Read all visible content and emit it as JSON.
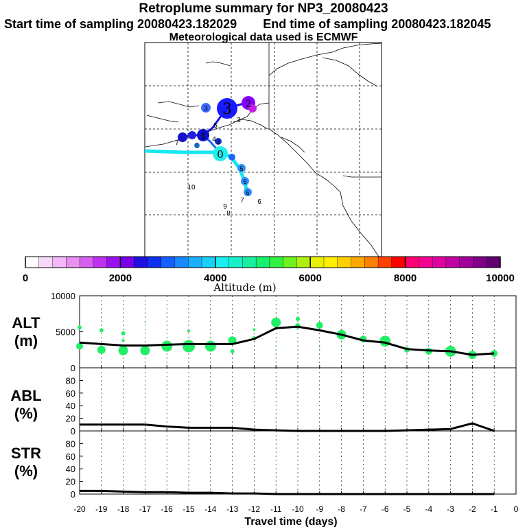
{
  "header": {
    "title": "Retroplume summary for NP3_20080423",
    "start_label": "Start time of sampling 20080423.182029",
    "end_label": "End time of sampling 20080423.182045",
    "met_label": "Meteorological data used is ECMWF"
  },
  "colors": {
    "path_blue": "#1414e6",
    "path_cyan": "#18e6f0",
    "plume_green": "#22ee66",
    "line_black": "#000000"
  },
  "map": {
    "markers": [
      {
        "label": "3",
        "size": "large",
        "color": "#1a1aff"
      },
      {
        "label": "2",
        "size": "medium",
        "color": "#8a00ff"
      },
      {
        "label": "3",
        "size": "small",
        "color": "#3a6aff"
      },
      {
        "label": "1",
        "size": "medium",
        "color": "#1010c8"
      },
      {
        "label": "4",
        "size": "small",
        "color": "#1430d8"
      },
      {
        "label": "0",
        "size": "medium",
        "color": "#22eeee"
      },
      {
        "label": "5",
        "size": "small",
        "color": "#2a90ff"
      },
      {
        "label": "5",
        "size": "small",
        "color": "#2a90ff"
      },
      {
        "label": "6",
        "size": "small",
        "color": "#2a90ff"
      }
    ],
    "text_labels": [
      "5",
      "3",
      "7",
      "6",
      "4",
      "10",
      "7",
      "6",
      "9",
      "8"
    ]
  },
  "colorbar": {
    "tick_labels": [
      "0",
      "2000",
      "4000",
      "6000",
      "8000",
      "10000"
    ],
    "axis_label": "Altitude  (m)",
    "colors": [
      "#ffffff",
      "#f8d8f8",
      "#f0b8f4",
      "#e890f0",
      "#d860f0",
      "#c030f0",
      "#9a10f0",
      "#7800e8",
      "#2010e0",
      "#1030f0",
      "#1660ff",
      "#1a88ff",
      "#1ab0ff",
      "#18d0f8",
      "#18f0f0",
      "#18f0c8",
      "#18f0a0",
      "#18f070",
      "#30f040",
      "#70f020",
      "#b0f010",
      "#e8f000",
      "#fff000",
      "#ffd000",
      "#ffa800",
      "#ff8000",
      "#ff4000",
      "#ff0000",
      "#ff0070",
      "#f00090",
      "#e000a0",
      "#c000a0",
      "#a00098",
      "#800088",
      "#600070"
    ]
  },
  "chart_data": [
    {
      "type": "line",
      "panel_label": "ALT\n(m)",
      "label_line1": "ALT",
      "label_line2": "(m)",
      "x": [
        -20,
        -19,
        -18,
        -17,
        -16,
        -15,
        -14,
        -13,
        -12,
        -11,
        -10,
        -9,
        -8,
        -7,
        -6,
        -5,
        -4,
        -3,
        -2,
        -1
      ],
      "values": [
        3500,
        3300,
        3100,
        3100,
        3200,
        3300,
        3300,
        3300,
        4000,
        5500,
        5700,
        5200,
        4600,
        3800,
        3500,
        2600,
        2400,
        2300,
        1800,
        2000
      ],
      "ylim": [
        0,
        10000
      ],
      "ytick_labels": [
        "0",
        "5000",
        "10000"
      ],
      "ytick_values": [
        0,
        5000,
        10000
      ],
      "plume_points": [
        {
          "x": -20,
          "y": 5600,
          "r": 3
        },
        {
          "x": -20,
          "y": 3000,
          "r": 5
        },
        {
          "x": -19,
          "y": 5200,
          "r": 3
        },
        {
          "x": -19,
          "y": 2500,
          "r": 6
        },
        {
          "x": -18,
          "y": 4800,
          "r": 3
        },
        {
          "x": -18,
          "y": 3800,
          "r": 2
        },
        {
          "x": -18,
          "y": 2400,
          "r": 7
        },
        {
          "x": -17,
          "y": 6300,
          "r": 1
        },
        {
          "x": -17,
          "y": 2400,
          "r": 7
        },
        {
          "x": -16,
          "y": 3000,
          "r": 8
        },
        {
          "x": -15,
          "y": 5100,
          "r": 2
        },
        {
          "x": -15,
          "y": 3000,
          "r": 9
        },
        {
          "x": -14,
          "y": 3000,
          "r": 8
        },
        {
          "x": -13,
          "y": 3800,
          "r": 6
        },
        {
          "x": -13,
          "y": 2300,
          "r": 3
        },
        {
          "x": -12,
          "y": 5300,
          "r": 2
        },
        {
          "x": -12,
          "y": 4100,
          "r": 3
        },
        {
          "x": -11,
          "y": 6300,
          "r": 7
        },
        {
          "x": -11,
          "y": 3000,
          "r": 1
        },
        {
          "x": -10,
          "y": 6800,
          "r": 3
        },
        {
          "x": -10,
          "y": 5800,
          "r": 4
        },
        {
          "x": -9,
          "y": 5900,
          "r": 5
        },
        {
          "x": -9,
          "y": 2900,
          "r": 1
        },
        {
          "x": -8,
          "y": 4600,
          "r": 7
        },
        {
          "x": -8,
          "y": 2900,
          "r": 1
        },
        {
          "x": -7,
          "y": 4000,
          "r": 5
        },
        {
          "x": -6,
          "y": 3700,
          "r": 8
        },
        {
          "x": -5,
          "y": 2500,
          "r": 4
        },
        {
          "x": -4,
          "y": 2300,
          "r": 5
        },
        {
          "x": -3,
          "y": 2300,
          "r": 8
        },
        {
          "x": -2,
          "y": 1800,
          "r": 6
        },
        {
          "x": -1,
          "y": 2000,
          "r": 5
        }
      ]
    },
    {
      "type": "line",
      "label_line1": "ABL",
      "label_line2": "(%)",
      "x": [
        -20,
        -19,
        -18,
        -17,
        -16,
        -15,
        -14,
        -13,
        -12,
        -11,
        -10,
        -9,
        -8,
        -7,
        -6,
        -5,
        -4,
        -3,
        -2,
        -1
      ],
      "values": [
        10,
        10,
        10,
        10,
        7,
        5,
        5,
        5,
        2,
        1,
        0,
        0,
        0,
        0,
        0,
        1,
        2,
        3,
        12,
        0
      ],
      "ylim": [
        0,
        100
      ],
      "ytick_labels": [
        "0",
        "20",
        "40",
        "60",
        "80"
      ],
      "ytick_values": [
        0,
        20,
        40,
        60,
        80
      ]
    },
    {
      "type": "line",
      "label_line1": "STR",
      "label_line2": "(%)",
      "x": [
        -20,
        -19,
        -18,
        -17,
        -16,
        -15,
        -14,
        -13,
        -12,
        -11,
        -10,
        -9,
        -8,
        -7,
        -6,
        -5,
        -4,
        -3,
        -2,
        -1
      ],
      "values": [
        5,
        5,
        4,
        3,
        3,
        2,
        2,
        1,
        1,
        0,
        0,
        0,
        0,
        0,
        0,
        0,
        0,
        0,
        0,
        0
      ],
      "ylim": [
        0,
        100
      ],
      "ytick_labels": [
        "0",
        "20",
        "40",
        "60",
        "80"
      ],
      "ytick_values": [
        0,
        20,
        40,
        60,
        80
      ],
      "xlabel": "Travel time (days)",
      "xtick_labels": [
        "-20",
        "-19",
        "-18",
        "-17",
        "-16",
        "-15",
        "-14",
        "-13",
        "-12",
        "-11",
        "-10",
        "-9",
        "-8",
        "-7",
        "-6",
        "-5",
        "-4",
        "-3",
        "-2",
        "-1",
        "0"
      ]
    }
  ]
}
